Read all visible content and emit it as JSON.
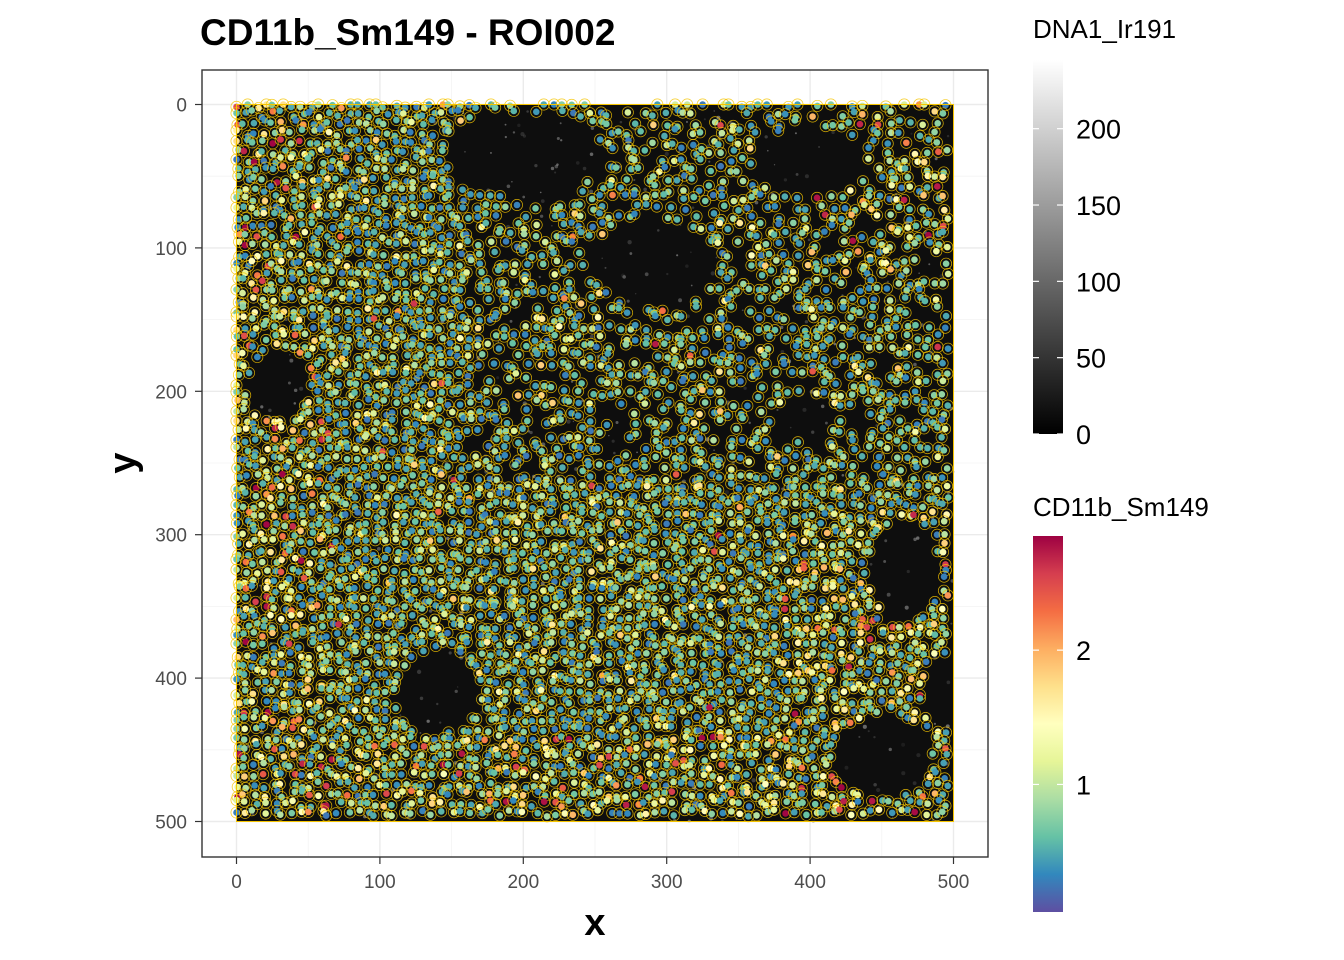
{
  "chart_data": {
    "type": "scatter",
    "title": "CD11b_Sm149 - ROI002",
    "xlabel": "x",
    "ylabel": "y",
    "xlim": [
      -24,
      524
    ],
    "ylim": [
      -24,
      524
    ],
    "y_reversed": true,
    "x_ticks": [
      "0",
      "100",
      "200",
      "300",
      "400",
      "500"
    ],
    "y_ticks": [
      "0",
      "100",
      "200",
      "300",
      "400",
      "500"
    ],
    "x_tick_values": [
      0,
      100,
      200,
      300,
      400,
      500
    ],
    "y_tick_values": [
      0,
      100,
      200,
      300,
      400,
      500
    ],
    "grid": true,
    "background_image": {
      "channel": "DNA1_Ir191",
      "colorscale": "greyscale",
      "range": [
        0,
        245
      ],
      "extent": [
        [
          0,
          500
        ],
        [
          0,
          500
        ]
      ]
    },
    "cell_outline_color": "#f5c400",
    "points_value_name": "CD11b_Sm149",
    "point_color_range": [
      0.05,
      2.85
    ],
    "point_colorscale": "Spectral (reversed)",
    "point_count_approx": 6000,
    "legends": [
      {
        "title": "DNA1_Ir191",
        "ticks": [
          "0",
          "50",
          "100",
          "150",
          "200"
        ],
        "tick_values": [
          0,
          50,
          100,
          150,
          200
        ],
        "range": [
          0,
          245
        ],
        "colors": [
          "#000000",
          "#ffffff"
        ]
      },
      {
        "title": "CD11b_Sm149",
        "ticks": [
          "1",
          "2"
        ],
        "tick_values": [
          1,
          2
        ],
        "range": [
          0.05,
          2.85
        ],
        "colors": [
          "#5e4fa2",
          "#3288bd",
          "#66c2a5",
          "#abdda4",
          "#e6f598",
          "#ffffbf",
          "#fee08b",
          "#fdae61",
          "#f46d43",
          "#d53e4f",
          "#9e0142"
        ]
      }
    ]
  }
}
